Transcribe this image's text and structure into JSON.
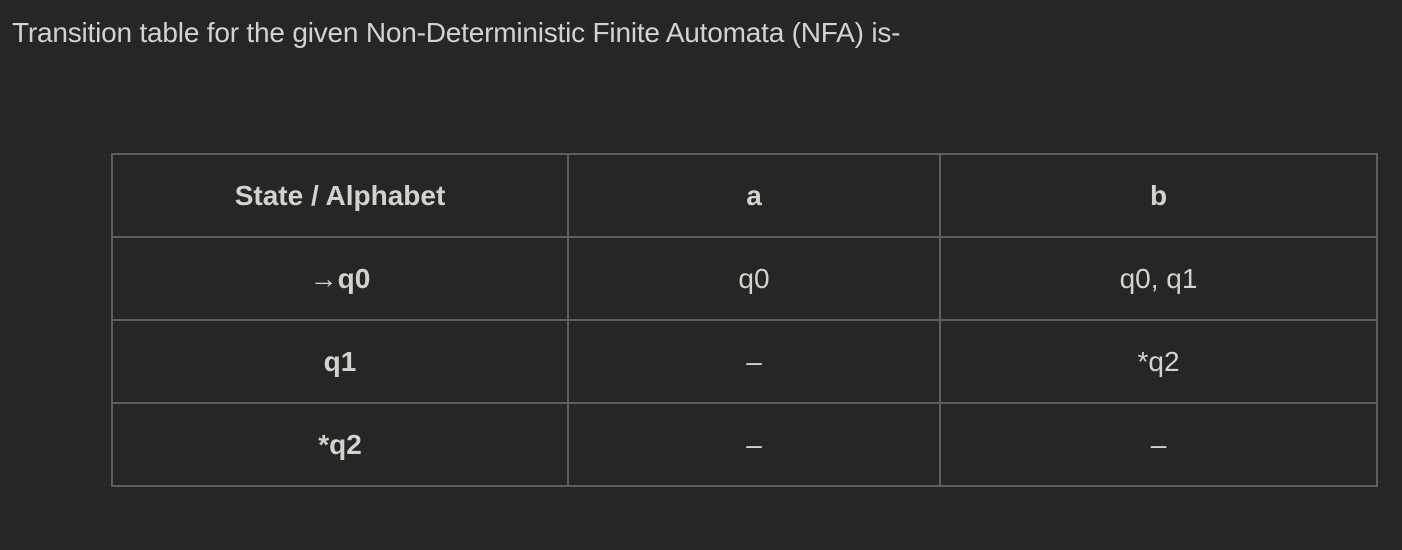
{
  "intro_text": "Transition table for the given Non-Deterministic Finite Automata (NFA) is-",
  "table": {
    "headers": [
      "State / Alphabet",
      "a",
      "b"
    ],
    "rows": [
      [
        "→q0",
        "q0",
        "q0, q1"
      ],
      [
        "q1",
        "–",
        "*q2"
      ],
      [
        "*q2",
        "–",
        "–"
      ]
    ]
  },
  "colors": {
    "background": "#252626",
    "text": "#d5d2cc",
    "border": "#5e5f5f"
  }
}
